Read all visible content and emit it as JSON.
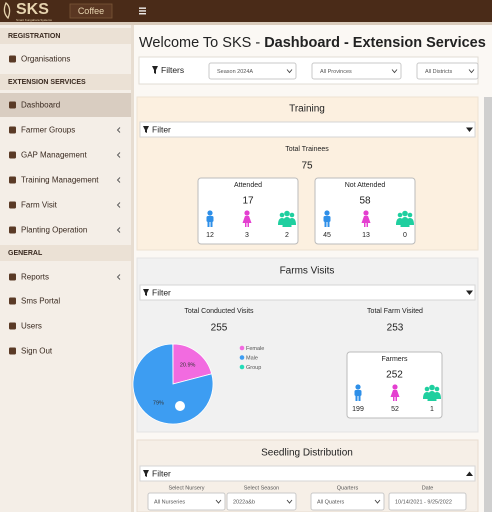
{
  "header": {
    "logo": "SKS",
    "logo_subtitle": "Smart Kungahara Systems",
    "product": "Coffee"
  },
  "sidebar": {
    "sections": [
      {
        "title": "REGISTRATION",
        "items": [
          "Organisations"
        ]
      },
      {
        "title": "EXTENSION SERVICES",
        "items": [
          "Dashboard",
          "Farmer Groups",
          "GAP Management",
          "Training Management",
          "Farm Visit",
          "Planting Operation"
        ]
      },
      {
        "title": "GENERAL",
        "items": [
          "Reports",
          "Sms Portal",
          "Users",
          "Sign Out"
        ]
      }
    ]
  },
  "page": {
    "title_prefix": "Welcome To SKS - ",
    "title_bold": "Dashboard - Extension Services",
    "filters_label": "Filters",
    "selects": [
      "Season 2024A",
      "All Provinces",
      "All Districts"
    ]
  },
  "training": {
    "title": "Training",
    "filter": "Filter",
    "total_label": "Total Trainees",
    "total": 75,
    "cards": [
      {
        "title": "Attended",
        "total": 17,
        "counts": [
          12,
          3,
          2
        ]
      },
      {
        "title": "Not Attended",
        "total": 58,
        "counts": [
          45,
          13,
          0
        ]
      }
    ]
  },
  "farm_visits": {
    "title": "Farms Visits",
    "filter": "Filter",
    "conducted_label": "Total Conducted Visits",
    "conducted": 255,
    "visited_label": "Total Farm Visited",
    "visited": 253,
    "pie": {
      "type": "pie",
      "series": [
        {
          "name": "Female",
          "color": "#f26be0",
          "value": 20.9,
          "value_label": "20.9%"
        },
        {
          "name": "Male",
          "color": "#3d9df2",
          "value": 79,
          "value_label": "79%"
        },
        {
          "name": "Group",
          "color": "#23dcb8"
        }
      ]
    },
    "farmers": {
      "title": "Farmers",
      "total": 252,
      "counts": [
        199,
        52,
        1
      ]
    }
  },
  "seedling": {
    "title": "Seedling Distribution",
    "filter": "Filter",
    "fields": [
      {
        "label": "Select Nursery",
        "value": "All Nurseries"
      },
      {
        "label": "Select Season",
        "value": "2022a&b"
      },
      {
        "label": "Quarters",
        "value": "All Quaters"
      },
      {
        "label": "Date",
        "value": "10/14/2021 - 9/25/2022"
      }
    ]
  }
}
